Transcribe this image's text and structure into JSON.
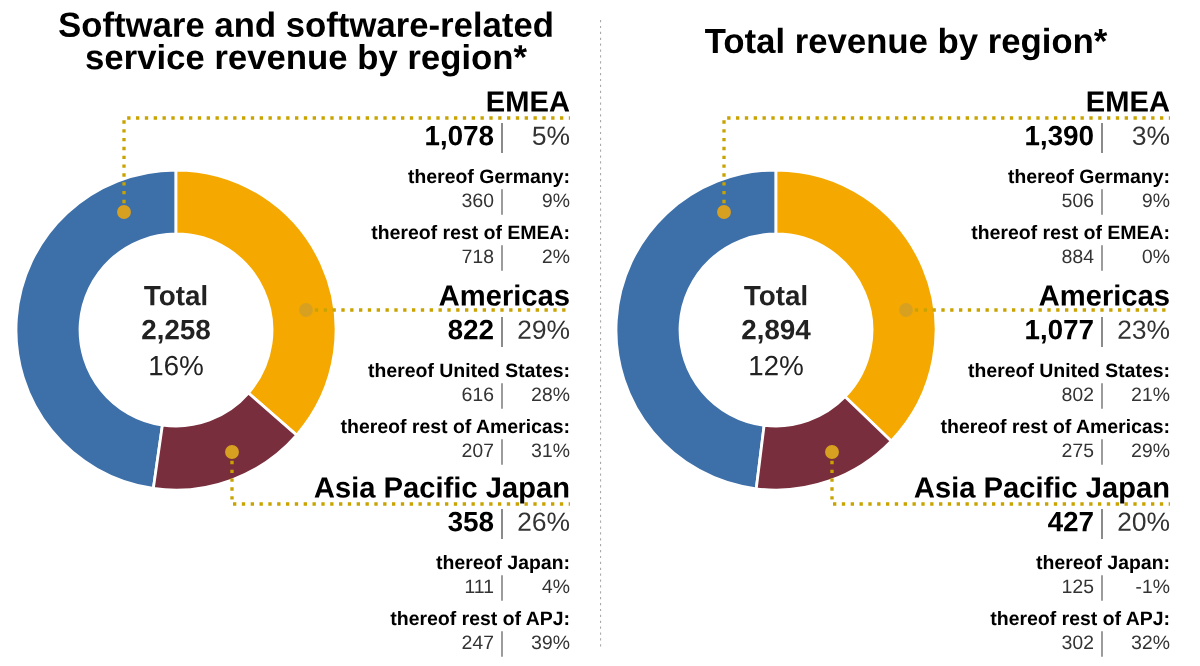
{
  "chart_data": [
    {
      "type": "donut",
      "title": "Software and software-related\nservice revenue by region*",
      "categories": [
        "EMEA",
        "Americas",
        "Asia Pacific Japan"
      ],
      "values": [
        1078,
        822,
        358
      ],
      "value_labels": [
        "1,078",
        "822",
        "358"
      ],
      "colors": [
        "#3d6fa8",
        "#f5a900",
        "#782e3c"
      ],
      "annotations": [
        "Total",
        "2,258",
        "16%",
        "5%",
        "29%",
        "26%",
        "thereof Germany:",
        "360",
        "9%",
        "thereof rest of EMEA:",
        "718",
        "2%",
        "thereof United States:",
        "616",
        "28%",
        "thereof rest of Americas:",
        "207",
        "31%",
        "thereof Japan:",
        "111",
        "4%",
        "thereof rest of APJ:",
        "247",
        "39%"
      ]
    },
    {
      "type": "donut",
      "title": "Total revenue by region*",
      "categories": [
        "EMEA",
        "Americas",
        "Asia Pacific Japan"
      ],
      "values": [
        1390,
        1077,
        427
      ],
      "value_labels": [
        "1,390",
        "1,077",
        "427"
      ],
      "colors": [
        "#3d6fa8",
        "#f5a900",
        "#782e3c"
      ],
      "annotations": [
        "Total",
        "2,894",
        "12%",
        "3%",
        "23%",
        "20%",
        "thereof Germany:",
        "506",
        "9%",
        "thereof rest of EMEA:",
        "884",
        "0%",
        "thereof United States:",
        "802",
        "21%",
        "thereof rest of Americas:",
        "275",
        "29%",
        "thereof Japan:",
        "125",
        "-1%",
        "thereof rest of APJ:",
        "302",
        "32%"
      ]
    }
  ]
}
